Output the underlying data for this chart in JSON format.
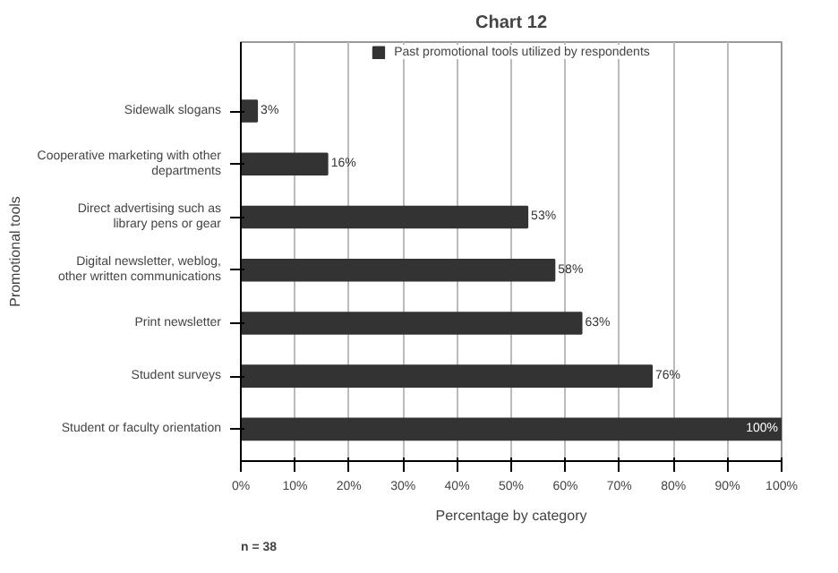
{
  "chart_data": {
    "type": "bar",
    "orientation": "horizontal",
    "title": "Chart 12",
    "xlabel": "Percentage by category",
    "ylabel": "Promotional tools",
    "categories": [
      "Sidewalk slogans",
      "Cooperative marketing with other departments",
      "Direct advertising such as library pens or gear",
      "Digital newsletter, weblog, other written communications",
      "Print newsletter",
      "Student surveys",
      "Student or faculty orientation"
    ],
    "series": [
      {
        "name": "Past promotional tools utilized by respondents",
        "color": "#333333",
        "values": [
          3,
          16,
          53,
          58,
          63,
          76,
          100
        ],
        "value_labels": [
          "3%",
          "16%",
          "53%",
          "58%",
          "63%",
          "76%",
          "100%"
        ]
      }
    ],
    "xlim": [
      0,
      100
    ],
    "xticks": [
      {
        "value": 0,
        "label": "0%"
      },
      {
        "value": 10,
        "label": "10%"
      },
      {
        "value": 20,
        "label": "20%"
      },
      {
        "value": 30,
        "label": "30%"
      },
      {
        "value": 40,
        "label": "40%"
      },
      {
        "value": 50,
        "label": "50%"
      },
      {
        "value": 60,
        "label": "60%"
      },
      {
        "value": 70,
        "label": "70%"
      },
      {
        "value": 80,
        "label": "80%"
      },
      {
        "value": 90,
        "label": "90%"
      },
      {
        "value": 100,
        "label": "100%"
      }
    ],
    "grid": "x",
    "legend": "top",
    "annotations": [
      "n = 38"
    ]
  }
}
